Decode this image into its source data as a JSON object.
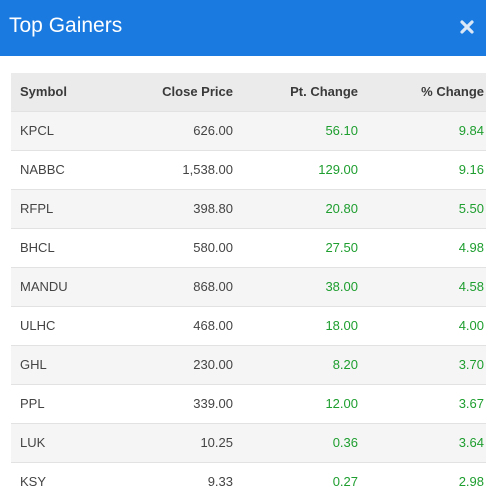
{
  "header": {
    "title": "Top Gainers",
    "close_glyph": "✖",
    "close_icon": "close-icon"
  },
  "colors": {
    "header_bg": "#1a7ae0",
    "gain_green": "#1e9e2f"
  },
  "table": {
    "columns": [
      "Symbol",
      "Close Price",
      "Pt. Change",
      "% Change"
    ],
    "rows": [
      {
        "symbol": "KPCL",
        "close": "626.00",
        "pt": "56.10",
        "pct": "9.84"
      },
      {
        "symbol": "NABBC",
        "close": "1,538.00",
        "pt": "129.00",
        "pct": "9.16"
      },
      {
        "symbol": "RFPL",
        "close": "398.80",
        "pt": "20.80",
        "pct": "5.50"
      },
      {
        "symbol": "BHCL",
        "close": "580.00",
        "pt": "27.50",
        "pct": "4.98"
      },
      {
        "symbol": "MANDU",
        "close": "868.00",
        "pt": "38.00",
        "pct": "4.58"
      },
      {
        "symbol": "ULHC",
        "close": "468.00",
        "pt": "18.00",
        "pct": "4.00"
      },
      {
        "symbol": "GHL",
        "close": "230.00",
        "pt": "8.20",
        "pct": "3.70"
      },
      {
        "symbol": "PPL",
        "close": "339.00",
        "pt": "12.00",
        "pct": "3.67"
      },
      {
        "symbol": "LUK",
        "close": "10.25",
        "pt": "0.36",
        "pct": "3.64"
      },
      {
        "symbol": "KSY",
        "close": "9.33",
        "pt": "0.27",
        "pct": "2.98"
      }
    ]
  }
}
